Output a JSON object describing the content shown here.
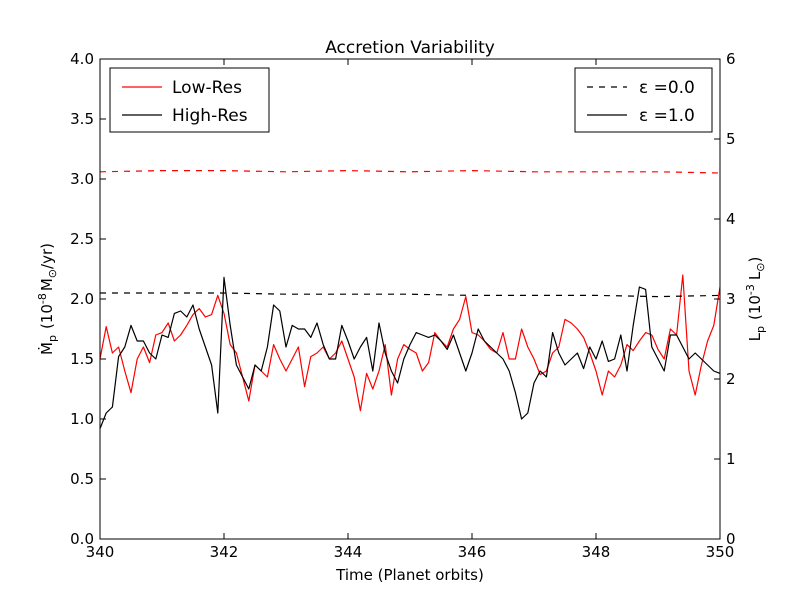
{
  "chart_data": {
    "type": "line",
    "title": "Accretion Variability",
    "xlabel": "Time (Planet orbits)",
    "ylabel_main": "Ṁ",
    "ylabel_sub": "p",
    "ylabel_rest": "(10",
    "ylabel_exp": "-8",
    "ylabel_units": "M",
    "ylabel_sun": "⊙",
    "ylabel_end": "/yr)",
    "y2label_main": "L",
    "y2label_sub": "p",
    "y2label_rest": "(10",
    "y2label_exp": "-3",
    "y2label_units": "L",
    "y2label_sun": "⊙",
    "y2label_end": ")",
    "xlim": [
      340,
      350
    ],
    "ylim": [
      0,
      4
    ],
    "y2lim": [
      0,
      6
    ],
    "xticks": [
      340,
      342,
      344,
      346,
      348,
      350
    ],
    "xtick_labels": [
      "340",
      "342",
      "344",
      "346",
      "348",
      "350"
    ],
    "yticks": [
      0,
      0.5,
      1,
      1.5,
      2,
      2.5,
      3,
      3.5,
      4
    ],
    "ytick_labels": [
      "0.0",
      "0.5",
      "1.0",
      "1.5",
      "2.0",
      "2.5",
      "3.0",
      "3.5",
      "4.0"
    ],
    "y2ticks": [
      0,
      1,
      2,
      3,
      4,
      5,
      6
    ],
    "y2tick_labels": [
      "0",
      "1",
      "2",
      "3",
      "4",
      "5",
      "6"
    ],
    "legend_left": {
      "position": "top-left",
      "entries": [
        {
          "label": "Low-Res",
          "color": "#ff0000",
          "style": "solid"
        },
        {
          "label": "High-Res",
          "color": "#000000",
          "style": "solid"
        }
      ]
    },
    "legend_right": {
      "position": "top-right",
      "entries": [
        {
          "label": "ε =0.0",
          "color": "#000000",
          "style": "dashed"
        },
        {
          "label": "ε =1.0",
          "color": "#000000",
          "style": "solid"
        }
      ]
    },
    "series": [
      {
        "name": "Low-Res ε=1.0",
        "color": "#ff0000",
        "style": "solid",
        "x": [
          340.0,
          340.1,
          340.2,
          340.3,
          340.4,
          340.5,
          340.6,
          340.7,
          340.8,
          340.9,
          341.0,
          341.1,
          341.2,
          341.3,
          341.4,
          341.5,
          341.6,
          341.7,
          341.8,
          341.9,
          342.0,
          342.1,
          342.2,
          342.3,
          342.4,
          342.5,
          342.6,
          342.7,
          342.8,
          342.9,
          343.0,
          343.1,
          343.2,
          343.3,
          343.4,
          343.5,
          343.6,
          343.7,
          343.8,
          343.9,
          344.0,
          344.1,
          344.2,
          344.3,
          344.4,
          344.5,
          344.6,
          344.7,
          344.8,
          344.9,
          345.0,
          345.1,
          345.2,
          345.3,
          345.4,
          345.5,
          345.6,
          345.7,
          345.8,
          345.9,
          346.0,
          346.1,
          346.2,
          346.3,
          346.4,
          346.5,
          346.6,
          346.7,
          346.8,
          346.9,
          347.0,
          347.1,
          347.2,
          347.3,
          347.4,
          347.5,
          347.6,
          347.7,
          347.8,
          347.9,
          348.0,
          348.1,
          348.2,
          348.3,
          348.4,
          348.5,
          348.6,
          348.7,
          348.8,
          348.9,
          349.0,
          349.1,
          349.2,
          349.3,
          349.4,
          349.5,
          349.6,
          349.7,
          349.8,
          349.9,
          350.0
        ],
        "y": [
          1.5,
          1.77,
          1.55,
          1.6,
          1.4,
          1.22,
          1.5,
          1.6,
          1.47,
          1.7,
          1.72,
          1.8,
          1.65,
          1.7,
          1.78,
          1.87,
          1.92,
          1.85,
          1.87,
          2.03,
          1.88,
          1.62,
          1.55,
          1.35,
          1.15,
          1.45,
          1.4,
          1.35,
          1.62,
          1.5,
          1.4,
          1.5,
          1.6,
          1.27,
          1.52,
          1.55,
          1.6,
          1.5,
          1.55,
          1.65,
          1.5,
          1.35,
          1.07,
          1.38,
          1.25,
          1.4,
          1.62,
          1.2,
          1.5,
          1.62,
          1.58,
          1.55,
          1.4,
          1.47,
          1.72,
          1.65,
          1.6,
          1.75,
          1.83,
          2.02,
          1.72,
          1.7,
          1.65,
          1.58,
          1.55,
          1.72,
          1.5,
          1.5,
          1.75,
          1.6,
          1.5,
          1.37,
          1.4,
          1.55,
          1.6,
          1.83,
          1.8,
          1.75,
          1.68,
          1.55,
          1.4,
          1.2,
          1.4,
          1.35,
          1.45,
          1.62,
          1.57,
          1.65,
          1.72,
          1.7,
          1.58,
          1.5,
          1.75,
          1.7,
          2.2,
          1.4,
          1.2,
          1.45,
          1.65,
          1.78,
          2.1
        ]
      },
      {
        "name": "High-Res ε=1.0",
        "color": "#000000",
        "style": "solid",
        "x": [
          340.0,
          340.1,
          340.2,
          340.3,
          340.4,
          340.5,
          340.6,
          340.7,
          340.8,
          340.9,
          341.0,
          341.1,
          341.2,
          341.3,
          341.4,
          341.5,
          341.6,
          341.7,
          341.8,
          341.9,
          342.0,
          342.1,
          342.2,
          342.3,
          342.4,
          342.5,
          342.6,
          342.7,
          342.8,
          342.9,
          343.0,
          343.1,
          343.2,
          343.3,
          343.4,
          343.5,
          343.6,
          343.7,
          343.8,
          343.9,
          344.0,
          344.1,
          344.2,
          344.3,
          344.4,
          344.5,
          344.6,
          344.7,
          344.8,
          344.9,
          345.0,
          345.1,
          345.2,
          345.3,
          345.4,
          345.5,
          345.6,
          345.7,
          345.8,
          345.9,
          346.0,
          346.1,
          346.2,
          346.3,
          346.4,
          346.5,
          346.6,
          346.7,
          346.8,
          346.9,
          347.0,
          347.1,
          347.2,
          347.3,
          347.4,
          347.5,
          347.6,
          347.7,
          347.8,
          347.9,
          348.0,
          348.1,
          348.2,
          348.3,
          348.4,
          348.5,
          348.6,
          348.7,
          348.8,
          348.9,
          349.0,
          349.1,
          349.2,
          349.3,
          349.4,
          349.5,
          349.6,
          349.7,
          349.8,
          349.9,
          350.0
        ],
        "y": [
          0.92,
          1.05,
          1.1,
          1.52,
          1.6,
          1.78,
          1.65,
          1.65,
          1.55,
          1.5,
          1.7,
          1.68,
          1.88,
          1.9,
          1.85,
          1.95,
          1.75,
          1.6,
          1.45,
          1.05,
          2.18,
          1.78,
          1.45,
          1.35,
          1.25,
          1.45,
          1.4,
          1.6,
          1.95,
          1.9,
          1.6,
          1.78,
          1.75,
          1.75,
          1.68,
          1.8,
          1.62,
          1.5,
          1.5,
          1.78,
          1.65,
          1.5,
          1.6,
          1.68,
          1.4,
          1.8,
          1.55,
          1.4,
          1.3,
          1.5,
          1.62,
          1.72,
          1.7,
          1.68,
          1.7,
          1.65,
          1.58,
          1.7,
          1.55,
          1.4,
          1.55,
          1.75,
          1.65,
          1.6,
          1.55,
          1.5,
          1.4,
          1.22,
          1.0,
          1.05,
          1.3,
          1.4,
          1.35,
          1.72,
          1.55,
          1.45,
          1.5,
          1.55,
          1.42,
          1.6,
          1.5,
          1.65,
          1.48,
          1.5,
          1.7,
          1.4,
          1.78,
          2.1,
          2.08,
          1.6,
          1.5,
          1.4,
          1.7,
          1.7,
          1.6,
          1.5,
          1.55,
          1.5,
          1.45,
          1.4,
          1.38
        ]
      },
      {
        "name": "Low-Res ε=0.0",
        "color": "#ff0000",
        "style": "dashed",
        "x": [
          340.0,
          341.0,
          342.0,
          343.0,
          344.0,
          345.0,
          346.0,
          347.0,
          348.0,
          349.0,
          350.0
        ],
        "y": [
          3.06,
          3.07,
          3.07,
          3.06,
          3.07,
          3.06,
          3.07,
          3.06,
          3.06,
          3.06,
          3.05
        ]
      },
      {
        "name": "High-Res ε=0.0",
        "color": "#000000",
        "style": "dashed",
        "x": [
          340.0,
          341.0,
          342.0,
          343.0,
          344.0,
          345.0,
          346.0,
          347.0,
          348.0,
          349.0,
          350.0
        ],
        "y": [
          2.05,
          2.05,
          2.05,
          2.04,
          2.04,
          2.04,
          2.03,
          2.03,
          2.03,
          2.02,
          2.03
        ]
      }
    ]
  }
}
